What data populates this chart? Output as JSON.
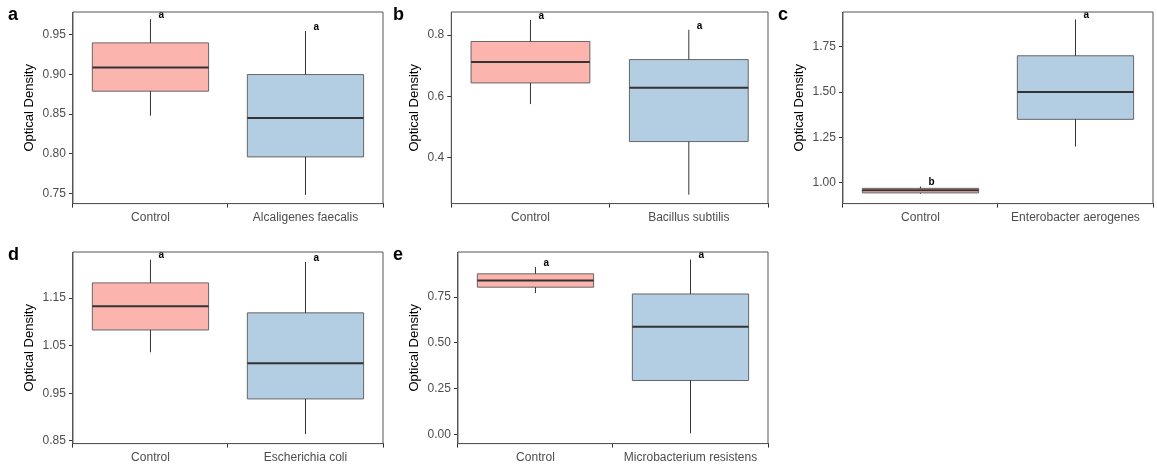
{
  "chart_data": [
    {
      "type": "box",
      "title": "a",
      "ylabel": "Optical Density",
      "categories": [
        "Control",
        "Alcaligenes faecalis"
      ],
      "colors": [
        "#fbb4ae",
        "#b3cde3"
      ],
      "boxes": [
        {
          "low": 0.848,
          "q1": 0.879,
          "median": 0.909,
          "q3": 0.94,
          "high": 0.97
        },
        {
          "low": 0.748,
          "q1": 0.796,
          "median": 0.845,
          "q3": 0.9,
          "high": 0.955
        }
      ],
      "ylim": [
        0.737,
        0.979
      ],
      "yticks": [
        {
          "value": 0.75,
          "label": "0.75"
        },
        {
          "value": 0.8,
          "label": "0.80"
        },
        {
          "value": 0.85,
          "label": "0.85"
        },
        {
          "value": 0.9,
          "label": "0.90"
        },
        {
          "value": 0.95,
          "label": "0.95"
        }
      ],
      "annotations": [
        "a",
        "a"
      ],
      "grid": false
    },
    {
      "type": "box",
      "title": "b",
      "ylabel": "Optical Density",
      "categories": [
        "Control",
        "Bacillus subtilis"
      ],
      "colors": [
        "#fbb4ae",
        "#b3cde3"
      ],
      "boxes": [
        {
          "low": 0.575,
          "q1": 0.644,
          "median": 0.712,
          "q3": 0.779,
          "high": 0.849
        },
        {
          "low": 0.28,
          "q1": 0.453,
          "median": 0.628,
          "q3": 0.72,
          "high": 0.817
        }
      ],
      "ylim": [
        0.251,
        0.875
      ],
      "yticks": [
        0.4,
        0.6,
        0.8
      ],
      "annotations": [
        "a",
        "a"
      ],
      "grid": false
    },
    {
      "type": "box",
      "title": "c",
      "ylabel": "Optical Density",
      "categories": [
        "Control",
        "Enterobacter aerogenes"
      ],
      "colors": [
        "#fbb4ae",
        "#b3cde3"
      ],
      "boxes": [
        {
          "low": 0.94,
          "q1": 0.945,
          "median": 0.96,
          "q3": 0.97,
          "high": 0.98
        },
        {
          "low": 1.2,
          "q1": 1.35,
          "median": 1.5,
          "q3": 1.7,
          "high": 1.9
        }
      ],
      "ylim": [
        0.886,
        1.941
      ],
      "yticks": [
        {
          "value": 1,
          "label": "1.00"
        },
        {
          "value": 1.25,
          "label": "1.25"
        },
        {
          "value": 1.5,
          "label": "1.50"
        },
        1.75
      ],
      "annotations": [
        "b",
        "a"
      ],
      "grid": false
    },
    {
      "type": "box",
      "title": "d",
      "ylabel": "Optical Density",
      "categories": [
        "Control",
        "Escherichia coli"
      ],
      "colors": [
        "#fbb4ae",
        "#b3cde3"
      ],
      "boxes": [
        {
          "low": 1.036,
          "q1": 1.083,
          "median": 1.133,
          "q3": 1.182,
          "high": 1.231
        },
        {
          "low": 0.864,
          "q1": 0.938,
          "median": 1.013,
          "q3": 1.119,
          "high": 1.226
        }
      ],
      "ylim": [
        0.844,
        1.247
      ],
      "yticks": [
        0.85,
        0.95,
        1.05,
        1.15
      ],
      "annotations": [
        "a",
        "a"
      ],
      "grid": false
    },
    {
      "type": "box",
      "title": "e",
      "ylabel": "Optical Density",
      "categories": [
        "Control",
        "Microbacterium resistens"
      ],
      "colors": [
        "#fbb4ae",
        "#b3cde3"
      ],
      "boxes": [
        {
          "low": 0.772,
          "q1": 0.804,
          "median": 0.841,
          "q3": 0.877,
          "high": 0.914
        },
        {
          "low": 0.007,
          "q1": 0.295,
          "median": 0.588,
          "q3": 0.767,
          "high": 0.955
        }
      ],
      "ylim": [
        -0.049,
        0.996
      ],
      "yticks": [
        {
          "value": 0,
          "label": "0.00"
        },
        0.25,
        {
          "value": 0.5,
          "label": "0.50"
        },
        0.75
      ],
      "annotations": [
        "a",
        "a"
      ],
      "grid": false
    }
  ]
}
